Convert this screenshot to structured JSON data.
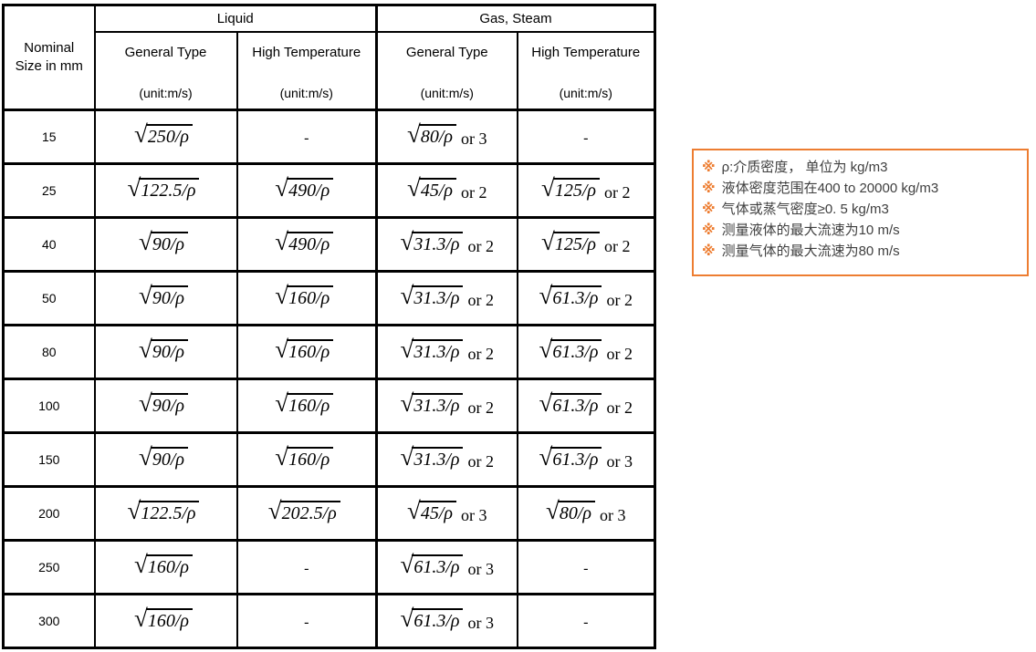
{
  "table": {
    "radical": "√",
    "corner": {
      "line1": "Nominal",
      "line2": "Size in mm"
    },
    "groups": [
      "Liquid",
      "Gas, Steam"
    ],
    "subheaders": [
      {
        "title": "General Type",
        "unit": "(unit:m/s)"
      },
      {
        "title": "High Temperature",
        "unit": "(unit:m/s)"
      },
      {
        "title": "General Type",
        "unit": "(unit:m/s)"
      },
      {
        "title": "High Temperature",
        "unit": "(unit:m/s)"
      }
    ],
    "rows": [
      {
        "size": "15",
        "cells": [
          {
            "sqrt": "250/ρ",
            "suffix": ""
          },
          {
            "dash": "-"
          },
          {
            "sqrt": "80/ρ",
            "suffix": "or 3"
          },
          {
            "dash": "-"
          }
        ]
      },
      {
        "size": "25",
        "cells": [
          {
            "sqrt": "122.5/ρ",
            "suffix": ""
          },
          {
            "sqrt": "490/ρ",
            "suffix": ""
          },
          {
            "sqrt": "45/ρ",
            "suffix": "or 2"
          },
          {
            "sqrt": "125/ρ",
            "suffix": "or 2"
          }
        ]
      },
      {
        "size": "40",
        "cells": [
          {
            "sqrt": "90/ρ",
            "suffix": ""
          },
          {
            "sqrt": "490/ρ",
            "suffix": ""
          },
          {
            "sqrt": "31.3/ρ",
            "suffix": "or 2"
          },
          {
            "sqrt": "125/ρ",
            "suffix": "or 2"
          }
        ]
      },
      {
        "size": "50",
        "cells": [
          {
            "sqrt": "90/ρ",
            "suffix": ""
          },
          {
            "sqrt": "160/ρ",
            "suffix": ""
          },
          {
            "sqrt": "31.3/ρ",
            "suffix": "or 2"
          },
          {
            "sqrt": "61.3/ρ",
            "suffix": "or 2"
          }
        ]
      },
      {
        "size": "80",
        "cells": [
          {
            "sqrt": "90/ρ",
            "suffix": ""
          },
          {
            "sqrt": "160/ρ",
            "suffix": ""
          },
          {
            "sqrt": "31.3/ρ",
            "suffix": "or 2"
          },
          {
            "sqrt": "61.3/ρ",
            "suffix": "or 2"
          }
        ]
      },
      {
        "size": "100",
        "cells": [
          {
            "sqrt": "90/ρ",
            "suffix": ""
          },
          {
            "sqrt": "160/ρ",
            "suffix": ""
          },
          {
            "sqrt": "31.3/ρ",
            "suffix": "or 2"
          },
          {
            "sqrt": "61.3/ρ",
            "suffix": "or 2"
          }
        ]
      },
      {
        "size": "150",
        "cells": [
          {
            "sqrt": "90/ρ",
            "suffix": ""
          },
          {
            "sqrt": "160/ρ",
            "suffix": ""
          },
          {
            "sqrt": "31.3/ρ",
            "suffix": "or 2"
          },
          {
            "sqrt": "61.3/ρ",
            "suffix": "or 3"
          }
        ]
      },
      {
        "size": "200",
        "cells": [
          {
            "sqrt": "122.5/ρ",
            "suffix": ""
          },
          {
            "sqrt": "202.5/ρ",
            "suffix": ""
          },
          {
            "sqrt": "45/ρ",
            "suffix": "or 3"
          },
          {
            "sqrt": "80/ρ",
            "suffix": "or 3"
          }
        ]
      },
      {
        "size": "250",
        "cells": [
          {
            "sqrt": "160/ρ",
            "suffix": ""
          },
          {
            "dash": "-"
          },
          {
            "sqrt": "61.3/ρ",
            "suffix": "or 3"
          },
          {
            "dash": "-"
          }
        ]
      },
      {
        "size": "300",
        "cells": [
          {
            "sqrt": "160/ρ",
            "suffix": ""
          },
          {
            "dash": "-"
          },
          {
            "sqrt": "61.3/ρ",
            "suffix": "or 3"
          },
          {
            "dash": "-"
          }
        ]
      }
    ]
  },
  "notes": {
    "marker": "※",
    "accent_color": "#ED7D31",
    "text_color": "#3F3F3F",
    "items": [
      "ρ:介质密度， 单位为 kg/m3",
      "液体密度范围在400 to 20000 kg/m3",
      "气体或蒸气密度≥0. 5 kg/m3",
      "测量液体的最大流速为10 m/s",
      "测量气体的最大流速为80 m/s"
    ]
  }
}
